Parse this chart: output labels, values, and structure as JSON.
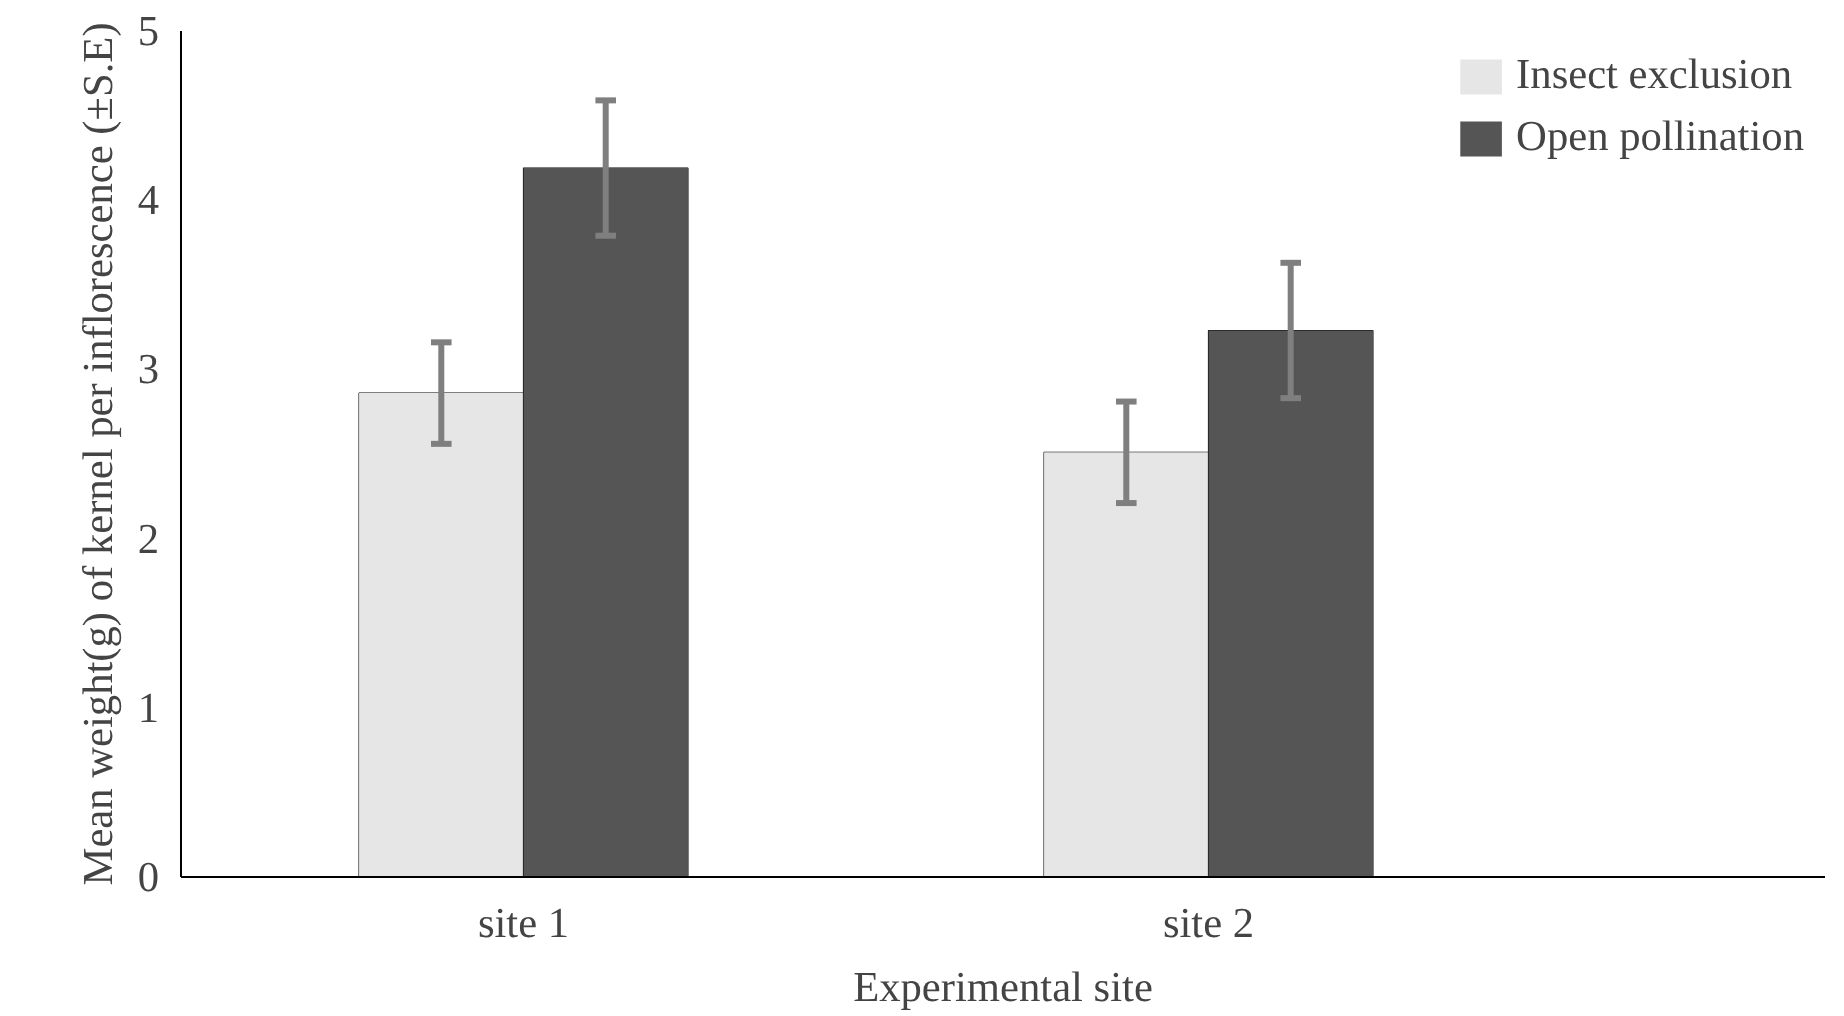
{
  "chart_data": {
    "type": "bar",
    "xlabel": "Experimental site",
    "ylabel": "Mean weight(g) of kernel per inflorescence (±S.E)",
    "categories": [
      "site 1",
      "site 2"
    ],
    "series": [
      {
        "name": "Insect exclusion",
        "color": "#e6e6e6",
        "values": [
          2.86,
          2.51
        ],
        "errors": [
          0.3,
          0.3
        ]
      },
      {
        "name": "Open pollination",
        "color": "#555555",
        "values": [
          4.19,
          3.23
        ],
        "errors": [
          0.4,
          0.4
        ]
      }
    ],
    "ylim": [
      0,
      5
    ],
    "yticks": [
      0,
      1,
      2,
      3,
      4,
      5
    ],
    "grid": false,
    "legend": "top right"
  }
}
